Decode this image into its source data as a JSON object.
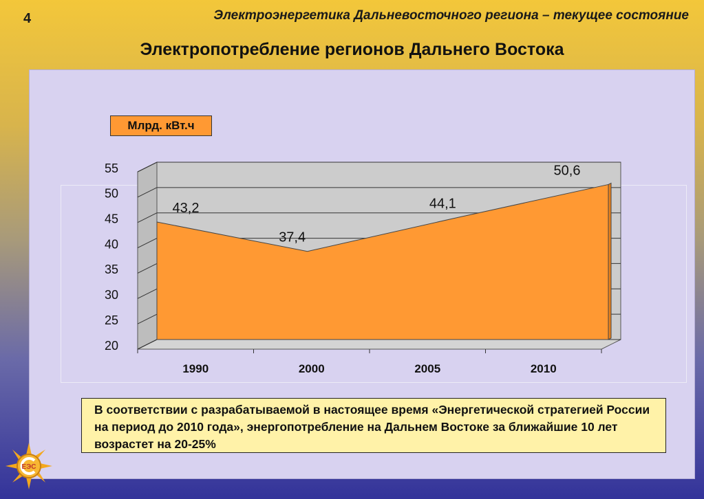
{
  "header": {
    "slide_number": "4",
    "title": "Электроэнергетика Дальневосточного региона – текущее состояние"
  },
  "chart_data": {
    "type": "area",
    "title": "Электропотребление регионов Дальнего Востока",
    "ylabel": "Млрд. кВт.ч",
    "categories": [
      "1990",
      "2000",
      "2005",
      "2010"
    ],
    "values": [
      43.2,
      37.4,
      44.1,
      50.6
    ],
    "value_labels": [
      "43,2",
      "37,4",
      "44,1",
      "50,6"
    ],
    "ylim": [
      20,
      55
    ],
    "yticks": [
      "20",
      "25",
      "30",
      "35",
      "40",
      "45",
      "50",
      "55"
    ],
    "grid": true,
    "colors": {
      "area": "#ff9933",
      "plot_back": "#cccccc",
      "plot_floor": "#d4d4d4"
    }
  },
  "note": "В соответствии с разрабатываемой в настоящее время «Энергетической стратегией России на период до 2010 года», энергопотребление на Дальнем Востоке за ближайшие 10 лет возрастет на 20-25%",
  "logo": {
    "icon": "company-logo-icon",
    "text": "ЕЭС"
  }
}
